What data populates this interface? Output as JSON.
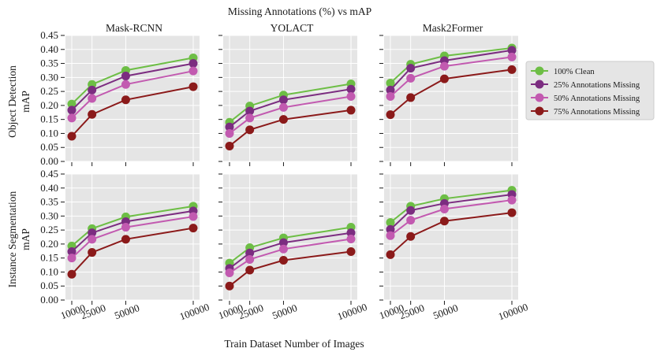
{
  "chart_data": {
    "type": "line",
    "title": "Missing Annotations (%) vs mAP",
    "xlabel": "Train Dataset Number of Images",
    "x": [
      10000,
      25000,
      50000,
      100000
    ],
    "x_tick_labels": [
      "10000",
      "25000",
      "50000",
      "100000"
    ],
    "ylim": [
      0,
      0.45
    ],
    "y_ticks": [
      0.0,
      0.05,
      0.1,
      0.15,
      0.2,
      0.25,
      0.3,
      0.35,
      0.4,
      0.45
    ],
    "y_tick_labels": [
      "0.00",
      "0.05",
      "0.10",
      "0.15",
      "0.20",
      "0.25",
      "0.30",
      "0.35",
      "0.40",
      "0.45"
    ],
    "grid": true,
    "legend_position": "right",
    "columns": [
      "Mask-RCNN",
      "YOLACT",
      "Mask2Former"
    ],
    "rows": [
      {
        "label_line1": "Object Detection",
        "label_line2": "mAP"
      },
      {
        "label_line1": "Instance Segmentation",
        "label_line2": "mAP"
      }
    ],
    "series": [
      {
        "name": "100% Clean",
        "color": "#6dbe45"
      },
      {
        "name": "25% Annotations Missing",
        "color": "#7b2d80"
      },
      {
        "name": "50% Annotations Missing",
        "color": "#c25ab0"
      },
      {
        "name": "75% Annotations Missing",
        "color": "#8b1a1a"
      }
    ],
    "panels": [
      {
        "row": 0,
        "col": 0,
        "model": "Mask-RCNN",
        "task": "Object Detection",
        "values": [
          [
            0.205,
            0.275,
            0.325,
            0.37
          ],
          [
            0.183,
            0.255,
            0.305,
            0.35
          ],
          [
            0.155,
            0.225,
            0.275,
            0.323
          ],
          [
            0.09,
            0.168,
            0.22,
            0.267
          ]
        ]
      },
      {
        "row": 0,
        "col": 1,
        "model": "YOLACT",
        "task": "Object Detection",
        "values": [
          [
            0.14,
            0.198,
            0.237,
            0.277
          ],
          [
            0.123,
            0.18,
            0.22,
            0.258
          ],
          [
            0.1,
            0.155,
            0.193,
            0.232
          ],
          [
            0.055,
            0.113,
            0.15,
            0.183
          ]
        ]
      },
      {
        "row": 0,
        "col": 2,
        "model": "Mask2Former",
        "task": "Object Detection",
        "values": [
          [
            0.28,
            0.347,
            0.377,
            0.405
          ],
          [
            0.255,
            0.333,
            0.36,
            0.397
          ],
          [
            0.232,
            0.297,
            0.34,
            0.373
          ],
          [
            0.167,
            0.228,
            0.295,
            0.328
          ]
        ]
      },
      {
        "row": 1,
        "col": 0,
        "model": "Mask-RCNN",
        "task": "Instance Segmentation",
        "values": [
          [
            0.193,
            0.255,
            0.297,
            0.335
          ],
          [
            0.173,
            0.24,
            0.28,
            0.318
          ],
          [
            0.15,
            0.217,
            0.26,
            0.298
          ],
          [
            0.092,
            0.17,
            0.217,
            0.257
          ]
        ]
      },
      {
        "row": 1,
        "col": 1,
        "model": "YOLACT",
        "task": "Instance Segmentation",
        "values": [
          [
            0.132,
            0.187,
            0.222,
            0.26
          ],
          [
            0.113,
            0.168,
            0.205,
            0.24
          ],
          [
            0.097,
            0.145,
            0.182,
            0.218
          ],
          [
            0.05,
            0.107,
            0.142,
            0.173
          ]
        ]
      },
      {
        "row": 1,
        "col": 2,
        "model": "Mask2Former",
        "task": "Instance Segmentation",
        "values": [
          [
            0.277,
            0.335,
            0.362,
            0.392
          ],
          [
            0.252,
            0.32,
            0.345,
            0.377
          ],
          [
            0.23,
            0.285,
            0.325,
            0.357
          ],
          [
            0.162,
            0.227,
            0.282,
            0.312
          ]
        ]
      }
    ]
  }
}
